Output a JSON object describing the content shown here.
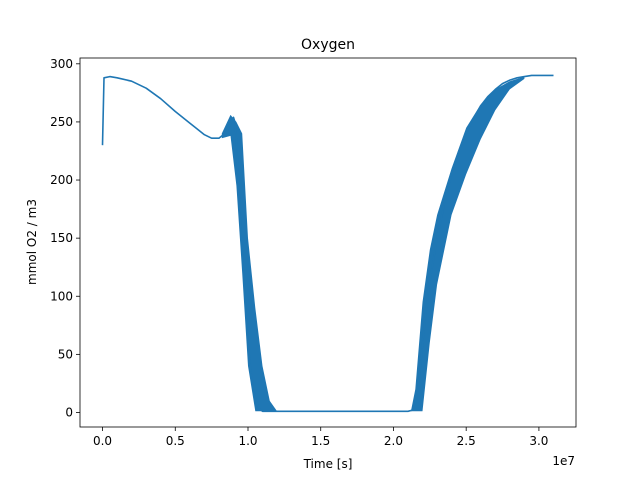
{
  "chart_data": {
    "type": "line",
    "title": "Oxygen",
    "xlabel": "Time [s]",
    "ylabel": "mmol O2 / m3",
    "x_offset_label": "1e7",
    "x_ticks": [
      0,
      0.5,
      1.0,
      1.5,
      2.0,
      2.5,
      3.0
    ],
    "x_tick_labels": [
      "0.0",
      "0.5",
      "1.0",
      "1.5",
      "2.0",
      "2.5",
      "3.0"
    ],
    "y_ticks": [
      0,
      50,
      100,
      150,
      200,
      250,
      300
    ],
    "y_tick_labels": [
      "0",
      "50",
      "100",
      "150",
      "200",
      "250",
      "300"
    ],
    "xlim": [
      -0.155,
      3.255
    ],
    "ylim": [
      -12.5,
      305
    ],
    "grid": false,
    "line_color": "#1f77b4",
    "series": [
      {
        "x": [
          0,
          0.01,
          0.05,
          0.1,
          0.2,
          0.3,
          0.4,
          0.5,
          0.6,
          0.7,
          0.75,
          0.8,
          0.85,
          0.88,
          0.9,
          0.91,
          0.92,
          0.93,
          0.95,
          0.98,
          1.0,
          1.02,
          1.04,
          1.06,
          1.08,
          1.1,
          1.12,
          1.15,
          1.2,
          1.3,
          1.5,
          1.8,
          2.0,
          2.1,
          2.13,
          2.15,
          2.17,
          2.2,
          2.22,
          2.25,
          2.3,
          2.35,
          2.4,
          2.45,
          2.5,
          2.55,
          2.6,
          2.65,
          2.7,
          2.75,
          2.8,
          2.85,
          2.9,
          2.95,
          3.0,
          3.05,
          3.1
        ],
        "values": [
          230,
          288,
          289,
          288,
          285,
          279,
          270,
          259,
          249,
          239,
          236,
          236,
          241,
          248,
          254,
          250,
          235,
          210,
          160,
          100,
          60,
          35,
          18,
          8,
          3,
          1,
          1,
          1,
          1,
          1,
          1,
          1,
          1,
          1,
          2,
          8,
          22,
          58,
          84,
          113,
          150,
          180,
          205,
          225,
          240,
          253,
          264,
          272,
          278,
          283,
          286,
          288,
          289,
          290,
          290,
          290,
          290
        ]
      }
    ],
    "band": {
      "x": [
        0.82,
        0.88,
        0.92,
        0.96,
        1.0,
        1.05,
        1.1,
        1.15,
        1.2,
        2.12,
        2.15,
        2.2,
        2.25,
        2.3,
        2.4,
        2.5,
        2.6,
        2.7,
        2.8,
        2.9
      ],
      "low": [
        236,
        238,
        195,
        120,
        40,
        1,
        1,
        1,
        1,
        1,
        1,
        1,
        60,
        110,
        170,
        205,
        235,
        260,
        278,
        287
      ],
      "high": [
        240,
        256,
        250,
        240,
        150,
        90,
        40,
        10,
        1,
        1,
        20,
        95,
        140,
        170,
        210,
        245,
        265,
        278,
        285,
        289
      ]
    }
  }
}
